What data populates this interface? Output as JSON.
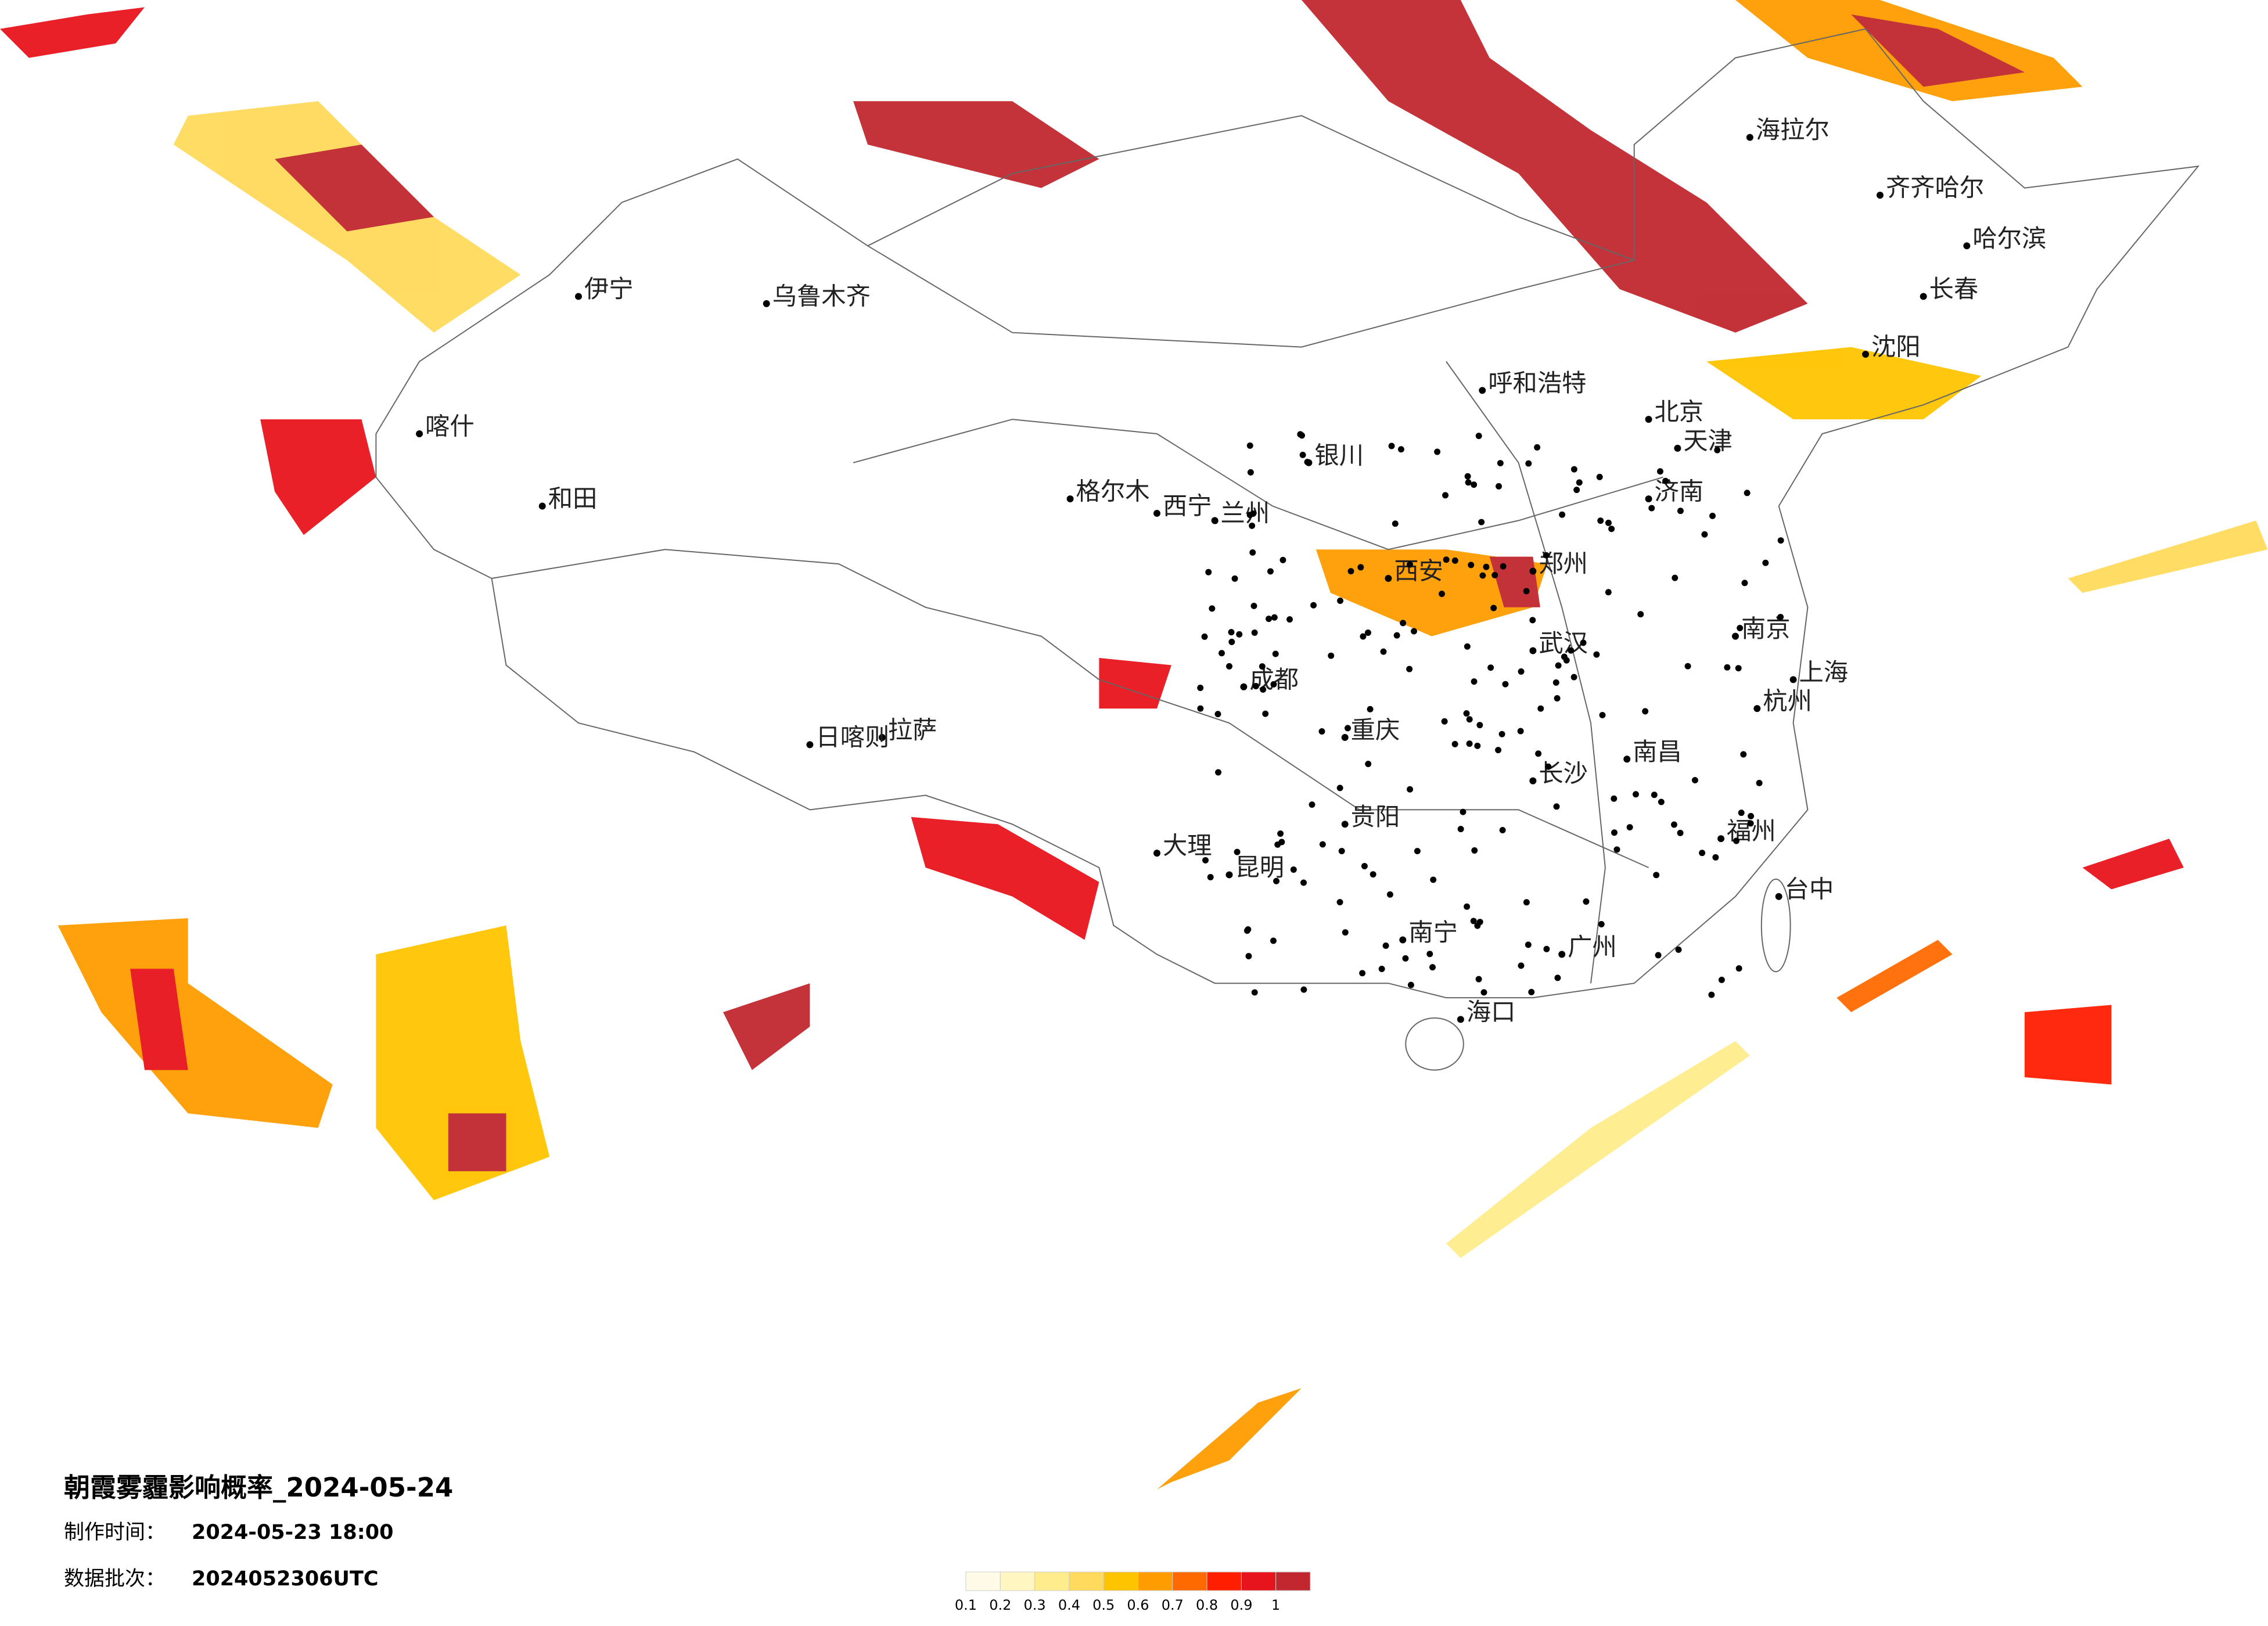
{
  "header": {
    "title": "朝霞雾霾影响概率_2024-05-24",
    "made_label": "制作时间：",
    "made_value": "2024-05-23 18:00",
    "batch_label": "数据批次：",
    "batch_value": "2024052306UTC"
  },
  "legend": {
    "ticks": [
      0.1,
      0.2,
      0.3,
      0.4,
      0.5,
      0.6,
      0.7,
      0.8,
      0.9,
      1
    ],
    "colors": [
      "#fffbe6",
      "#fff6c2",
      "#ffec8c",
      "#ffda5c",
      "#ffc400",
      "#ff9c00",
      "#ff6a00",
      "#ff1e00",
      "#e8141c",
      "#c0282e"
    ]
  },
  "cities": [
    "北京",
    "天津",
    "上海",
    "广州",
    "重庆",
    "成都",
    "武汉",
    "西安",
    "拉萨",
    "乌鲁木齐",
    "哈尔滨",
    "长春",
    "沈阳",
    "呼和浩特",
    "兰州",
    "西宁",
    "银川",
    "昆明",
    "贵阳",
    "南宁",
    "海口",
    "郑州",
    "济南",
    "南京",
    "杭州",
    "福州",
    "南昌",
    "长沙",
    "台中",
    "喀什",
    "和田",
    "伊宁",
    "日喀则",
    "格尔木",
    "大理",
    "齐齐哈尔",
    "海拉尔"
  ]
}
